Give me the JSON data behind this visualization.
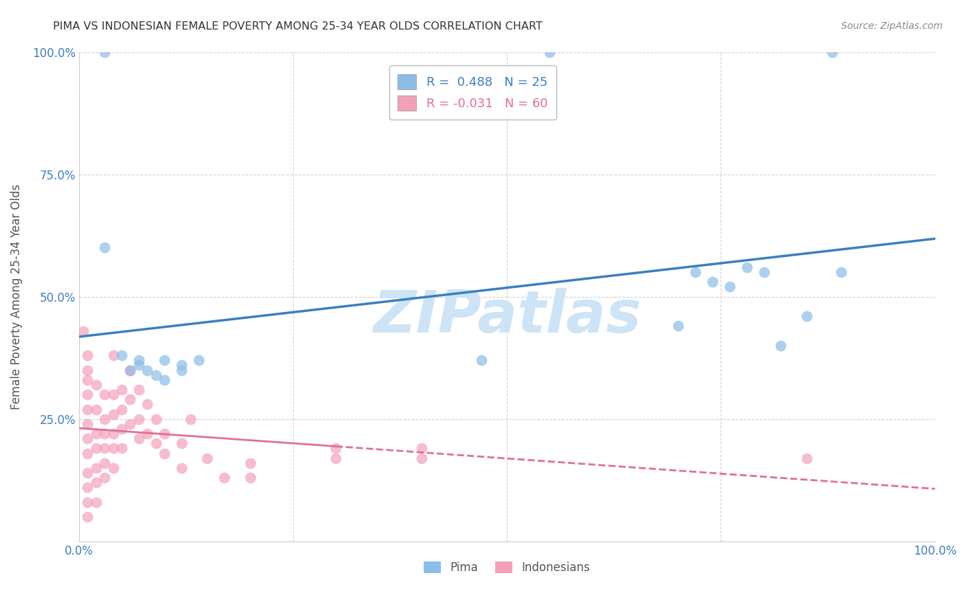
{
  "title": "PIMA VS INDONESIAN FEMALE POVERTY AMONG 25-34 YEAR OLDS CORRELATION CHART",
  "source": "Source: ZipAtlas.com",
  "ylabel": "Female Poverty Among 25-34 Year Olds",
  "xlim": [
    0.0,
    1.0
  ],
  "ylim": [
    0.0,
    1.0
  ],
  "legend_entries": [
    {
      "label": "R =  0.488   N = 25",
      "color": "#8bbde8"
    },
    {
      "label": "R = -0.031   N = 60",
      "color": "#f4a0b8"
    }
  ],
  "pima_color": "#8bbde8",
  "indonesian_color": "#f4a0b8",
  "pima_scatter": [
    [
      0.03,
      1.0
    ],
    [
      0.55,
      1.0
    ],
    [
      0.88,
      1.0
    ],
    [
      0.03,
      0.6
    ],
    [
      0.05,
      0.38
    ],
    [
      0.06,
      0.35
    ],
    [
      0.07,
      0.36
    ],
    [
      0.07,
      0.37
    ],
    [
      0.08,
      0.35
    ],
    [
      0.09,
      0.34
    ],
    [
      0.1,
      0.37
    ],
    [
      0.1,
      0.33
    ],
    [
      0.12,
      0.36
    ],
    [
      0.12,
      0.35
    ],
    [
      0.14,
      0.37
    ],
    [
      0.47,
      0.37
    ],
    [
      0.7,
      0.44
    ],
    [
      0.72,
      0.55
    ],
    [
      0.74,
      0.53
    ],
    [
      0.76,
      0.52
    ],
    [
      0.78,
      0.56
    ],
    [
      0.8,
      0.55
    ],
    [
      0.82,
      0.4
    ],
    [
      0.85,
      0.46
    ],
    [
      0.89,
      0.55
    ]
  ],
  "indonesian_scatter": [
    [
      0.005,
      0.43
    ],
    [
      0.01,
      0.38
    ],
    [
      0.01,
      0.35
    ],
    [
      0.01,
      0.33
    ],
    [
      0.01,
      0.3
    ],
    [
      0.01,
      0.27
    ],
    [
      0.01,
      0.24
    ],
    [
      0.01,
      0.21
    ],
    [
      0.01,
      0.18
    ],
    [
      0.01,
      0.14
    ],
    [
      0.01,
      0.11
    ],
    [
      0.01,
      0.08
    ],
    [
      0.01,
      0.05
    ],
    [
      0.02,
      0.32
    ],
    [
      0.02,
      0.27
    ],
    [
      0.02,
      0.22
    ],
    [
      0.02,
      0.19
    ],
    [
      0.02,
      0.15
    ],
    [
      0.02,
      0.12
    ],
    [
      0.02,
      0.08
    ],
    [
      0.03,
      0.3
    ],
    [
      0.03,
      0.25
    ],
    [
      0.03,
      0.22
    ],
    [
      0.03,
      0.19
    ],
    [
      0.03,
      0.16
    ],
    [
      0.03,
      0.13
    ],
    [
      0.04,
      0.38
    ],
    [
      0.04,
      0.3
    ],
    [
      0.04,
      0.26
    ],
    [
      0.04,
      0.22
    ],
    [
      0.04,
      0.19
    ],
    [
      0.04,
      0.15
    ],
    [
      0.05,
      0.31
    ],
    [
      0.05,
      0.27
    ],
    [
      0.05,
      0.23
    ],
    [
      0.05,
      0.19
    ],
    [
      0.06,
      0.35
    ],
    [
      0.06,
      0.29
    ],
    [
      0.06,
      0.24
    ],
    [
      0.07,
      0.31
    ],
    [
      0.07,
      0.25
    ],
    [
      0.07,
      0.21
    ],
    [
      0.08,
      0.28
    ],
    [
      0.08,
      0.22
    ],
    [
      0.09,
      0.25
    ],
    [
      0.09,
      0.2
    ],
    [
      0.1,
      0.22
    ],
    [
      0.1,
      0.18
    ],
    [
      0.12,
      0.2
    ],
    [
      0.12,
      0.15
    ],
    [
      0.13,
      0.25
    ],
    [
      0.15,
      0.17
    ],
    [
      0.17,
      0.13
    ],
    [
      0.2,
      0.16
    ],
    [
      0.2,
      0.13
    ],
    [
      0.3,
      0.19
    ],
    [
      0.3,
      0.17
    ],
    [
      0.4,
      0.19
    ],
    [
      0.4,
      0.17
    ],
    [
      0.85,
      0.17
    ]
  ],
  "background_color": "#ffffff",
  "grid_color": "#d0d0d0",
  "watermark_text": "ZIPatlas",
  "watermark_color": "#cce4f5"
}
